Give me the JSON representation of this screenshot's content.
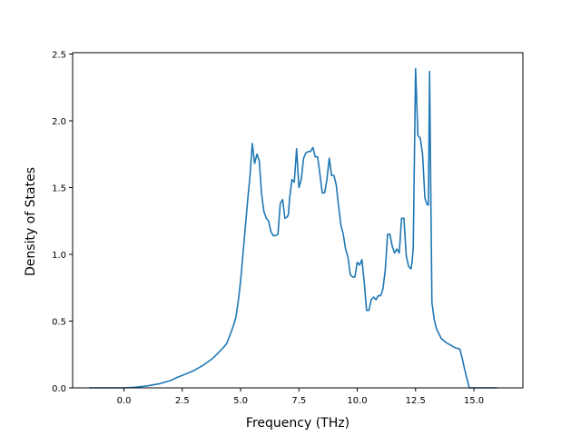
{
  "chart_data": {
    "type": "line",
    "title": "",
    "xlabel": "Frequency (THz)",
    "ylabel": "Density of States",
    "xlim": [
      -2.2,
      17.1
    ],
    "ylim": [
      0,
      2.51
    ],
    "xticks": [
      0.0,
      2.5,
      5.0,
      7.5,
      10.0,
      12.5,
      15.0
    ],
    "xtick_labels": [
      "0.0",
      "2.5",
      "5.0",
      "7.5",
      "10.0",
      "12.5",
      "15.0"
    ],
    "yticks": [
      0.0,
      0.5,
      1.0,
      1.5,
      2.0,
      2.5
    ],
    "ytick_labels": [
      "0.0",
      "0.5",
      "1.0",
      "1.5",
      "2.0",
      "2.5"
    ],
    "grid": false,
    "line_color": "#1f77b4",
    "series": [
      {
        "x": [
          -1.5,
          -1.0,
          -0.5,
          0.0,
          0.5,
          1.0,
          1.5,
          2.0,
          2.3,
          2.6,
          3.0,
          3.4,
          3.8,
          4.0,
          4.2,
          4.4,
          4.6,
          4.7,
          4.8,
          4.9,
          5.0,
          5.1,
          5.2,
          5.3,
          5.4,
          5.5,
          5.6,
          5.7,
          5.8,
          5.9,
          6.0,
          6.1,
          6.2,
          6.3,
          6.4,
          6.5,
          6.6,
          6.7,
          6.8,
          6.9,
          7.0,
          7.05,
          7.1,
          7.2,
          7.3,
          7.4,
          7.5,
          7.6,
          7.7,
          7.8,
          7.9,
          8.0,
          8.1,
          8.2,
          8.3,
          8.4,
          8.5,
          8.6,
          8.7,
          8.8,
          8.9,
          9.0,
          9.1,
          9.2,
          9.3,
          9.4,
          9.5,
          9.6,
          9.7,
          9.8,
          9.9,
          10.0,
          10.1,
          10.2,
          10.3,
          10.4,
          10.5,
          10.6,
          10.7,
          10.8,
          10.9,
          11.0,
          11.1,
          11.2,
          11.3,
          11.4,
          11.5,
          11.6,
          11.7,
          11.8,
          11.9,
          12.0,
          12.1,
          12.2,
          12.3,
          12.35,
          12.4,
          12.5,
          12.6,
          12.7,
          12.8,
          12.9,
          13.0,
          13.05,
          13.1,
          13.2,
          13.3,
          13.4,
          13.6,
          13.8,
          14.0,
          14.2,
          14.4,
          14.5,
          14.6,
          14.8,
          15.2,
          15.6,
          16.0
        ],
        "y": [
          0.0,
          0.0,
          0.0,
          0.0,
          0.005,
          0.015,
          0.03,
          0.055,
          0.08,
          0.1,
          0.13,
          0.17,
          0.22,
          0.255,
          0.29,
          0.33,
          0.42,
          0.47,
          0.53,
          0.65,
          0.8,
          1.0,
          1.2,
          1.4,
          1.58,
          1.83,
          1.68,
          1.75,
          1.7,
          1.45,
          1.32,
          1.27,
          1.25,
          1.17,
          1.14,
          1.14,
          1.15,
          1.38,
          1.41,
          1.27,
          1.28,
          1.3,
          1.42,
          1.56,
          1.54,
          1.79,
          1.5,
          1.56,
          1.72,
          1.76,
          1.77,
          1.77,
          1.8,
          1.73,
          1.73,
          1.6,
          1.46,
          1.46,
          1.56,
          1.72,
          1.59,
          1.59,
          1.52,
          1.36,
          1.22,
          1.15,
          1.04,
          0.98,
          0.85,
          0.83,
          0.83,
          0.94,
          0.92,
          0.96,
          0.79,
          0.58,
          0.58,
          0.66,
          0.68,
          0.66,
          0.69,
          0.69,
          0.74,
          0.88,
          1.15,
          1.15,
          1.06,
          1.01,
          1.04,
          1.01,
          1.27,
          1.27,
          0.99,
          0.91,
          0.89,
          0.94,
          1.05,
          2.39,
          1.89,
          1.87,
          1.75,
          1.42,
          1.37,
          1.37,
          2.37,
          0.64,
          0.51,
          0.44,
          0.37,
          0.34,
          0.32,
          0.3,
          0.29,
          0.22,
          0.14,
          0.0,
          0.0,
          0.0,
          0.0
        ]
      }
    ]
  }
}
